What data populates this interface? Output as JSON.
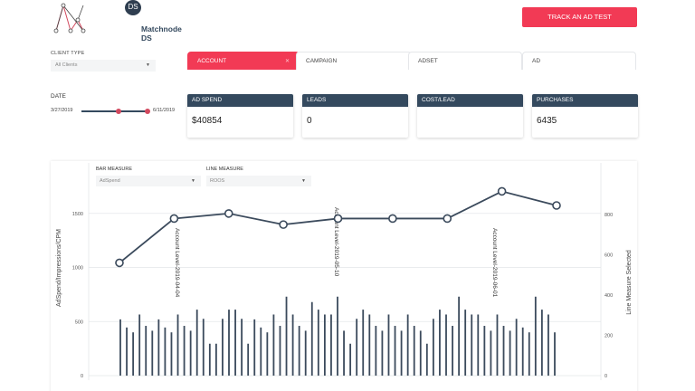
{
  "header": {
    "logo_badge": "DS",
    "brand_name": "Matchnode DS",
    "track_button": "TRACK AN AD TEST"
  },
  "filters": {
    "client_type_label": "CLIENT TYPE",
    "client_type_value": "All Clients",
    "date_label": "DATE",
    "date_from": "3/27/2019",
    "date_to": "6/11/2019"
  },
  "tabs": [
    {
      "label": "ACCOUNT",
      "active": true
    },
    {
      "label": "CAMPAIGN",
      "active": false
    },
    {
      "label": "ADSET",
      "active": false
    },
    {
      "label": "AD",
      "active": false
    }
  ],
  "cards": [
    {
      "title": "AD SPEND",
      "value": "$40854"
    },
    {
      "title": "LEADS",
      "value": "0"
    },
    {
      "title": "COST/LEAD",
      "value": ""
    },
    {
      "title": "PURCHASES",
      "value": "6435"
    }
  ],
  "chart_controls": {
    "bar_measure_label": "BAR MEASURE",
    "bar_measure_value": "AdSpend",
    "line_measure_label": "LINE MEASURE",
    "line_measure_value": "ROOS"
  },
  "colors": {
    "accent": "#f23a55",
    "navy": "#34495e"
  },
  "chart_data": {
    "type": "bar+line",
    "title": "",
    "ylabel": "AdSpend/Impressions/CPM",
    "y2label": "Line Measure Selected",
    "ylim": [
      0,
      1600
    ],
    "y2lim": [
      0,
      950
    ],
    "yticks": [
      0,
      500,
      1000,
      1500
    ],
    "y2ticks": [
      0,
      200,
      400,
      600,
      800
    ],
    "grid": true,
    "bar_series": {
      "name": "AdSpend",
      "values": [
        520,
        445,
        400,
        565,
        460,
        415,
        520,
        445,
        400,
        565,
        460,
        415,
        610,
        525,
        295,
        295,
        525,
        610,
        610,
        525,
        295,
        520,
        445,
        400,
        565,
        460,
        730,
        565,
        460,
        415,
        680,
        610,
        565,
        565,
        730,
        415,
        295,
        525,
        610,
        565,
        460,
        415,
        565,
        460,
        415,
        565,
        460,
        415,
        295,
        525,
        610,
        565,
        460,
        730,
        610,
        565,
        565,
        460,
        415,
        565,
        460,
        415,
        525,
        445,
        400,
        730,
        610,
        565,
        400
      ]
    },
    "line_series": {
      "name": "ROOS",
      "points": [
        {
          "x_index": 0,
          "value": 560
        },
        {
          "x_index": 9,
          "value": 780
        },
        {
          "x_index": 18,
          "value": 805
        },
        {
          "x_index": 27,
          "value": 750
        },
        {
          "x_index": 36,
          "value": 780
        },
        {
          "x_index": 45,
          "value": 780
        },
        {
          "x_index": 54,
          "value": 780
        },
        {
          "x_index": 63,
          "value": 915
        },
        {
          "x_index": 72,
          "value": 845
        }
      ]
    },
    "annotations": [
      {
        "label": "Account Level-2019-04-04"
      },
      {
        "label": "Account Level-2019-05-10"
      },
      {
        "label": "Account Level-2019-06-01"
      }
    ],
    "legend": []
  }
}
